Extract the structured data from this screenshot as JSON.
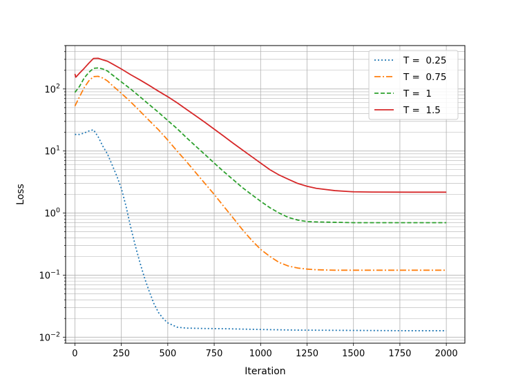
{
  "chart_data": {
    "type": "line",
    "xlabel": "Iteration",
    "ylabel": "Loss",
    "xlim": [
      -50,
      2100
    ],
    "ylim": [
      0.008,
      500
    ],
    "yscale": "log",
    "grid": true,
    "grid_minor": true,
    "legend_position": "top-right",
    "x_ticks": [
      0,
      250,
      500,
      750,
      1000,
      1250,
      1500,
      1750,
      2000
    ],
    "x_tick_labels": [
      "0",
      "250",
      "500",
      "750",
      "1000",
      "1250",
      "1500",
      "1750",
      "2000"
    ],
    "y_ticks": [
      {
        "value": 100,
        "base": "10",
        "exp": "2"
      },
      {
        "value": 10,
        "base": "10",
        "exp": "1"
      },
      {
        "value": 1,
        "base": "10",
        "exp": "0"
      },
      {
        "value": 0.1,
        "base": "10",
        "exp": "−1"
      },
      {
        "value": 0.01,
        "base": "10",
        "exp": "−2"
      }
    ],
    "series": [
      {
        "name": "T =  0.25",
        "color": "#1f77b4",
        "dash": "2,3",
        "points": [
          [
            0,
            18.5
          ],
          [
            25,
            18.5
          ],
          [
            50,
            19.5
          ],
          [
            75,
            21
          ],
          [
            100,
            22
          ],
          [
            125,
            17
          ],
          [
            150,
            12
          ],
          [
            175,
            9
          ],
          [
            200,
            6
          ],
          [
            225,
            4
          ],
          [
            250,
            2.5
          ],
          [
            275,
            1.3
          ],
          [
            300,
            0.6
          ],
          [
            325,
            0.3
          ],
          [
            350,
            0.16
          ],
          [
            375,
            0.09
          ],
          [
            400,
            0.055
          ],
          [
            425,
            0.035
          ],
          [
            450,
            0.025
          ],
          [
            475,
            0.02
          ],
          [
            500,
            0.017
          ],
          [
            550,
            0.0145
          ],
          [
            600,
            0.014
          ],
          [
            700,
            0.0138
          ],
          [
            800,
            0.0137
          ],
          [
            900,
            0.0135
          ],
          [
            1000,
            0.0133
          ],
          [
            1200,
            0.013
          ],
          [
            1400,
            0.0129
          ],
          [
            1600,
            0.0128
          ],
          [
            1800,
            0.0127
          ],
          [
            2000,
            0.0127
          ]
        ]
      },
      {
        "name": "T =  0.75",
        "color": "#ff7f0e",
        "dash": "9,3,2,3",
        "points": [
          [
            0,
            53
          ],
          [
            25,
            75
          ],
          [
            50,
            105
          ],
          [
            75,
            135
          ],
          [
            100,
            158
          ],
          [
            125,
            160
          ],
          [
            150,
            150
          ],
          [
            175,
            135
          ],
          [
            200,
            115
          ],
          [
            250,
            85
          ],
          [
            300,
            62
          ],
          [
            350,
            44
          ],
          [
            400,
            31
          ],
          [
            450,
            22
          ],
          [
            500,
            15
          ],
          [
            550,
            10
          ],
          [
            600,
            6.8
          ],
          [
            650,
            4.5
          ],
          [
            700,
            3
          ],
          [
            750,
            2
          ],
          [
            800,
            1.3
          ],
          [
            850,
            0.85
          ],
          [
            900,
            0.55
          ],
          [
            950,
            0.37
          ],
          [
            1000,
            0.26
          ],
          [
            1050,
            0.2
          ],
          [
            1100,
            0.16
          ],
          [
            1150,
            0.14
          ],
          [
            1200,
            0.13
          ],
          [
            1250,
            0.125
          ],
          [
            1300,
            0.122
          ],
          [
            1400,
            0.12
          ],
          [
            1500,
            0.12
          ],
          [
            1600,
            0.12
          ],
          [
            1800,
            0.12
          ],
          [
            2000,
            0.12
          ]
        ]
      },
      {
        "name": "T =  1",
        "color": "#2ca02c",
        "dash": "6,3",
        "points": [
          [
            0,
            88
          ],
          [
            25,
            110
          ],
          [
            50,
            150
          ],
          [
            75,
            185
          ],
          [
            100,
            215
          ],
          [
            125,
            218
          ],
          [
            150,
            210
          ],
          [
            175,
            195
          ],
          [
            200,
            170
          ],
          [
            250,
            130
          ],
          [
            300,
            100
          ],
          [
            350,
            75
          ],
          [
            400,
            56
          ],
          [
            450,
            42
          ],
          [
            500,
            31
          ],
          [
            550,
            23
          ],
          [
            600,
            16.5
          ],
          [
            650,
            12
          ],
          [
            700,
            8.8
          ],
          [
            750,
            6.4
          ],
          [
            800,
            4.7
          ],
          [
            850,
            3.5
          ],
          [
            900,
            2.6
          ],
          [
            950,
            2
          ],
          [
            1000,
            1.55
          ],
          [
            1050,
            1.22
          ],
          [
            1100,
            1
          ],
          [
            1150,
            0.85
          ],
          [
            1200,
            0.77
          ],
          [
            1250,
            0.73
          ],
          [
            1300,
            0.72
          ],
          [
            1400,
            0.71
          ],
          [
            1500,
            0.7
          ],
          [
            1600,
            0.7
          ],
          [
            1800,
            0.7
          ],
          [
            2000,
            0.7
          ]
        ]
      },
      {
        "name": "T =  1.5",
        "color": "#d62728",
        "dash": "",
        "points": [
          [
            0,
            175
          ],
          [
            5,
            155
          ],
          [
            25,
            180
          ],
          [
            50,
            215
          ],
          [
            75,
            260
          ],
          [
            100,
            310
          ],
          [
            125,
            312
          ],
          [
            150,
            295
          ],
          [
            175,
            280
          ],
          [
            200,
            255
          ],
          [
            250,
            210
          ],
          [
            300,
            170
          ],
          [
            350,
            140
          ],
          [
            400,
            114
          ],
          [
            450,
            92
          ],
          [
            500,
            75
          ],
          [
            550,
            60
          ],
          [
            600,
            47
          ],
          [
            650,
            37
          ],
          [
            700,
            29
          ],
          [
            750,
            22.5
          ],
          [
            800,
            17.5
          ],
          [
            850,
            13.5
          ],
          [
            900,
            10.5
          ],
          [
            950,
            8.2
          ],
          [
            1000,
            6.4
          ],
          [
            1050,
            5
          ],
          [
            1100,
            4.1
          ],
          [
            1150,
            3.5
          ],
          [
            1200,
            3
          ],
          [
            1250,
            2.7
          ],
          [
            1300,
            2.5
          ],
          [
            1400,
            2.3
          ],
          [
            1500,
            2.2
          ],
          [
            1600,
            2.18
          ],
          [
            1800,
            2.17
          ],
          [
            2000,
            2.17
          ]
        ]
      }
    ]
  }
}
